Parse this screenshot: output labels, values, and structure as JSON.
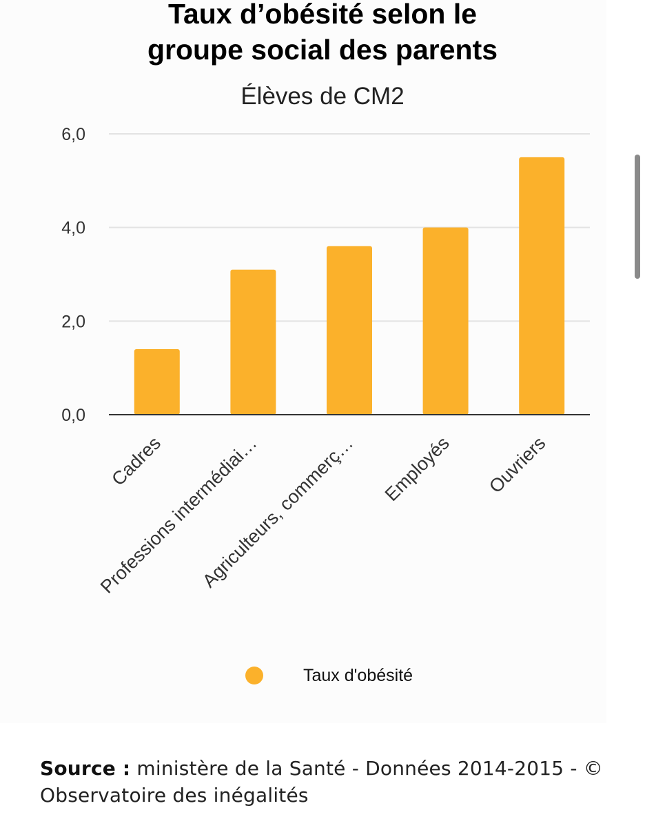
{
  "chart_data": {
    "type": "bar",
    "title": "Taux d’obésité selon le groupe social des parents",
    "title_lines": [
      "Taux d’obésité selon le",
      "groupe social des parents"
    ],
    "subtitle": "Élèves de CM2",
    "categories": [
      "Cadres",
      "Professions intermédiai…",
      "Agriculteurs, commerç…",
      "Employés",
      "Ouvriers"
    ],
    "series": [
      {
        "name": "Taux d'obésité",
        "values": [
          1.4,
          3.1,
          3.6,
          4.0,
          5.5
        ],
        "color": "#FBB12B"
      }
    ],
    "yticks": [
      "0,0",
      "2,0",
      "4,0",
      "6,0"
    ],
    "ylim": [
      0,
      6
    ],
    "grid": true,
    "legend_position": "bottom"
  },
  "source": {
    "label": "Source :",
    "text": " ministère de la Santé - Données 2014-2015 - © Observatoire des inégalités"
  },
  "colors": {
    "bar": "#FBB12B",
    "grid": "#e3e3e3",
    "axis": "#333333"
  }
}
